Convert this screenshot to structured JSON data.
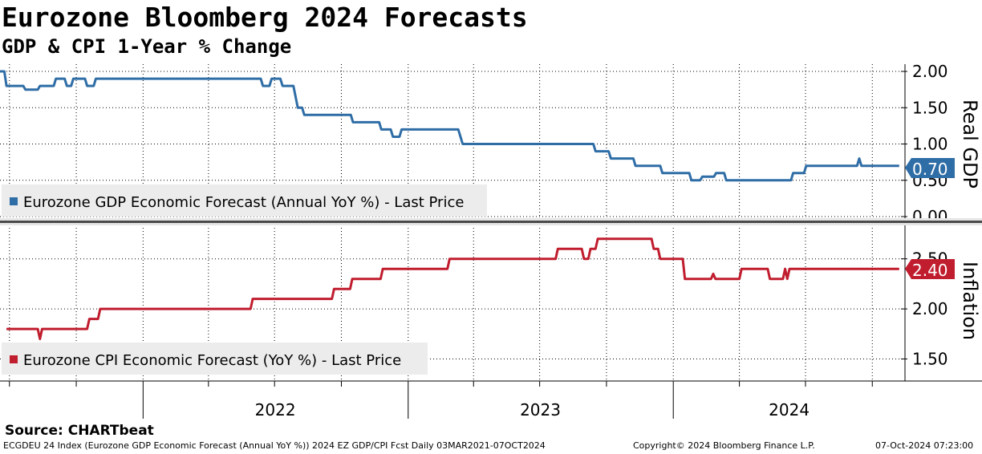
{
  "title": "Eurozone Bloomberg 2024 Forecasts",
  "subtitle": "GDP & CPI 1-Year % Change",
  "source": "Source: CHARTbeat",
  "footer": {
    "left": "ECGDEU 24 Index (Eurozone GDP Economic Forecast (Annual YoY %)) 2024 EZ GDP/CPI Fcst  Daily 03MAR2021-07OCT2024",
    "center": "Copyright© 2024 Bloomberg Finance L.P.",
    "right": "07-Oct-2024 07:23:00"
  },
  "colors": {
    "gdp": "#2f6da6",
    "cpi": "#c01d2e",
    "grid": "#000000"
  },
  "chart_data": [
    {
      "type": "line",
      "panel": "top",
      "axis_label": "Real GDP",
      "yticks": [
        "2.00",
        "1.50",
        "1.00",
        "0.50",
        "0.00"
      ],
      "ylim": [
        0,
        2.1
      ],
      "x_range": [
        "2021-06-18",
        "2024-11-15"
      ],
      "legend": "Eurozone GDP Economic Forecast (Annual YoY %) - Last Price",
      "last_value_label": "0.70",
      "series": [
        {
          "name": "Eurozone GDP Economic Forecast (Annual YoY %) - Last Price",
          "points": [
            [
              "2021-06-18",
              2.0
            ],
            [
              "2021-06-24",
              2.0
            ],
            [
              "2021-06-27",
              1.8
            ],
            [
              "2021-07-20",
              1.8
            ],
            [
              "2021-07-23",
              1.75
            ],
            [
              "2021-08-09",
              1.75
            ],
            [
              "2021-08-12",
              1.8
            ],
            [
              "2021-08-31",
              1.8
            ],
            [
              "2021-09-03",
              1.9
            ],
            [
              "2021-09-15",
              1.9
            ],
            [
              "2021-09-18",
              1.8
            ],
            [
              "2021-09-24",
              1.8
            ],
            [
              "2021-09-27",
              1.9
            ],
            [
              "2021-10-13",
              1.9
            ],
            [
              "2021-10-16",
              1.8
            ],
            [
              "2021-10-25",
              1.8
            ],
            [
              "2021-10-28",
              1.9
            ],
            [
              "2022-06-12",
              1.9
            ],
            [
              "2022-06-15",
              1.8
            ],
            [
              "2022-06-24",
              1.8
            ],
            [
              "2022-06-27",
              1.9
            ],
            [
              "2022-07-09",
              1.9
            ],
            [
              "2022-07-12",
              1.8
            ],
            [
              "2022-07-27",
              1.8
            ],
            [
              "2022-08-02",
              1.5
            ],
            [
              "2022-08-08",
              1.5
            ],
            [
              "2022-08-11",
              1.4
            ],
            [
              "2022-10-14",
              1.4
            ],
            [
              "2022-10-17",
              1.3
            ],
            [
              "2022-11-22",
              1.3
            ],
            [
              "2022-11-25",
              1.2
            ],
            [
              "2022-12-08",
              1.2
            ],
            [
              "2022-12-11",
              1.1
            ],
            [
              "2022-12-20",
              1.1
            ],
            [
              "2022-12-23",
              1.2
            ],
            [
              "2023-03-11",
              1.2
            ],
            [
              "2023-03-17",
              1.0
            ],
            [
              "2023-09-13",
              1.0
            ],
            [
              "2023-09-16",
              0.9
            ],
            [
              "2023-10-04",
              0.9
            ],
            [
              "2023-10-07",
              0.8
            ],
            [
              "2023-11-07",
              0.8
            ],
            [
              "2023-11-10",
              0.7
            ],
            [
              "2023-12-14",
              0.7
            ],
            [
              "2023-12-17",
              0.6
            ],
            [
              "2024-01-23",
              0.6
            ],
            [
              "2024-01-26",
              0.5
            ],
            [
              "2024-02-07",
              0.5
            ],
            [
              "2024-02-10",
              0.55
            ],
            [
              "2024-02-26",
              0.55
            ],
            [
              "2024-02-29",
              0.6
            ],
            [
              "2024-03-11",
              0.6
            ],
            [
              "2024-03-14",
              0.5
            ],
            [
              "2024-06-11",
              0.5
            ],
            [
              "2024-06-14",
              0.6
            ],
            [
              "2024-06-29",
              0.6
            ],
            [
              "2024-07-02",
              0.7
            ],
            [
              "2024-09-10",
              0.7
            ],
            [
              "2024-09-13",
              0.8
            ],
            [
              "2024-09-16",
              0.7
            ],
            [
              "2024-11-07",
              0.7
            ]
          ]
        }
      ]
    },
    {
      "type": "line",
      "panel": "bottom",
      "axis_label": "Inflation",
      "yticks": [
        "2.50",
        "2.00",
        "1.50"
      ],
      "ylim": [
        1.28,
        2.81
      ],
      "x_range": [
        "2021-06-18",
        "2024-11-15"
      ],
      "legend": "Eurozone CPI Economic Forecast (YoY %) - Last Price",
      "last_value_label": "2.40",
      "x_tick_labels": [
        "2022",
        "2023",
        "2024"
      ],
      "series": [
        {
          "name": "Eurozone CPI Economic Forecast (YoY %) - Last Price",
          "points": [
            [
              "2021-06-27",
              1.8
            ],
            [
              "2021-08-09",
              1.8
            ],
            [
              "2021-08-12",
              1.7
            ],
            [
              "2021-08-15",
              1.8
            ],
            [
              "2021-10-16",
              1.8
            ],
            [
              "2021-10-19",
              1.9
            ],
            [
              "2021-10-31",
              1.9
            ],
            [
              "2021-11-03",
              2.0
            ],
            [
              "2022-05-29",
              2.0
            ],
            [
              "2022-06-01",
              2.1
            ],
            [
              "2022-09-18",
              2.1
            ],
            [
              "2022-09-21",
              2.2
            ],
            [
              "2022-10-13",
              2.2
            ],
            [
              "2022-10-16",
              2.3
            ],
            [
              "2022-11-24",
              2.3
            ],
            [
              "2022-11-27",
              2.4
            ],
            [
              "2023-02-24",
              2.4
            ],
            [
              "2023-02-27",
              2.5
            ],
            [
              "2023-07-23",
              2.5
            ],
            [
              "2023-07-26",
              2.6
            ],
            [
              "2023-08-28",
              2.6
            ],
            [
              "2023-08-31",
              2.5
            ],
            [
              "2023-09-06",
              2.5
            ],
            [
              "2023-09-09",
              2.6
            ],
            [
              "2023-09-16",
              2.6
            ],
            [
              "2023-09-19",
              2.7
            ],
            [
              "2023-12-02",
              2.7
            ],
            [
              "2023-12-05",
              2.6
            ],
            [
              "2023-12-11",
              2.6
            ],
            [
              "2023-12-14",
              2.5
            ],
            [
              "2024-01-14",
              2.5
            ],
            [
              "2024-01-17",
              2.3
            ],
            [
              "2024-02-22",
              2.3
            ],
            [
              "2024-02-25",
              2.35
            ],
            [
              "2024-02-28",
              2.3
            ],
            [
              "2024-04-01",
              2.3
            ],
            [
              "2024-04-04",
              2.4
            ],
            [
              "2024-05-10",
              2.4
            ],
            [
              "2024-05-13",
              2.3
            ],
            [
              "2024-05-31",
              2.3
            ],
            [
              "2024-06-03",
              2.4
            ],
            [
              "2024-06-06",
              2.3
            ],
            [
              "2024-06-09",
              2.4
            ],
            [
              "2024-11-07",
              2.4
            ]
          ]
        }
      ]
    }
  ]
}
